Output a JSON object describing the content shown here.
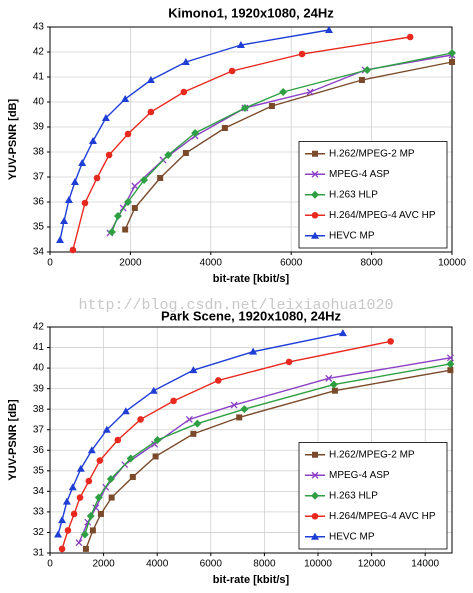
{
  "watermark": "http://blog.csdn.net/leixiaohua1020",
  "chart_data": [
    {
      "type": "line",
      "title": "Kimono1, 1920x1080, 24Hz",
      "x_label": "bit-rate [kbit/s]",
      "y_label": "YUV-PSNR [dB]",
      "xlim": [
        0,
        10000
      ],
      "xticks": [
        0,
        2000,
        4000,
        6000,
        8000,
        10000
      ],
      "ylim": [
        34,
        43
      ],
      "yticks": [
        34,
        35,
        36,
        37,
        38,
        39,
        40,
        41,
        42,
        43
      ],
      "grid": true,
      "legend": "lower right",
      "series": [
        {
          "name": "H.262/MPEG-2 MP",
          "color": "#7b4a2a",
          "marker": "square",
          "x": [
            1870,
            2110,
            2740,
            3380,
            4350,
            5520,
            7760,
            10000
          ],
          "values": [
            34.9,
            35.76,
            36.96,
            37.96,
            38.96,
            39.84,
            40.88,
            41.6
          ]
        },
        {
          "name": "MPEG-4 ASP",
          "color": "#8b3fc4",
          "marker": "x",
          "x": [
            1490,
            1820,
            2110,
            2810,
            3610,
            4850,
            6470,
            7840,
            10000
          ],
          "values": [
            34.76,
            35.76,
            36.64,
            37.68,
            38.64,
            39.76,
            40.4,
            41.28,
            41.88
          ]
        },
        {
          "name": "H.263 HLP",
          "color": "#2ea043",
          "marker": "diamond",
          "x": [
            1540,
            1690,
            1940,
            2340,
            2940,
            3610,
            4850,
            5800,
            7890,
            10000
          ],
          "values": [
            34.8,
            35.44,
            36.0,
            36.88,
            37.88,
            38.76,
            39.76,
            40.4,
            41.28,
            41.96
          ]
        },
        {
          "name": "H.264/MPEG-4 AVC HP",
          "color": "#e8291f",
          "marker": "circle",
          "x": [
            570,
            870,
            1170,
            1470,
            1940,
            2510,
            3330,
            4530,
            6270,
            8960
          ],
          "values": [
            34.08,
            35.96,
            36.96,
            37.88,
            38.72,
            39.6,
            40.4,
            41.24,
            41.92,
            42.6
          ]
        },
        {
          "name": "HEVC MP",
          "color": "#1f3ed6",
          "marker": "triangle",
          "x": [
            250,
            350,
            470,
            620,
            800,
            1070,
            1390,
            1870,
            2510,
            3380,
            4750,
            6940
          ],
          "values": [
            34.48,
            35.24,
            36.08,
            36.8,
            37.56,
            38.44,
            39.36,
            40.12,
            40.88,
            41.6,
            42.28,
            42.88
          ]
        }
      ]
    },
    {
      "type": "line",
      "title": "Park Scene, 1920x1080, 24Hz",
      "x_label": "bit-rate [kbit/s]",
      "y_label": "YUV-PSNR [dB]",
      "xlim": [
        0,
        15000
      ],
      "xticks": [
        0,
        2000,
        4000,
        6000,
        8000,
        10000,
        12000,
        14000
      ],
      "ylim": [
        31,
        42
      ],
      "yticks": [
        31,
        32,
        33,
        34,
        35,
        36,
        37,
        38,
        39,
        40,
        41,
        42
      ],
      "grid": true,
      "legend": "lower right",
      "series": [
        {
          "name": "H.262/MPEG-2 MP",
          "color": "#7b4a2a",
          "marker": "square",
          "x": [
            1340,
            1600,
            1900,
            2300,
            3090,
            3940,
            5350,
            7060,
            10630,
            14940
          ],
          "values": [
            31.2,
            32.1,
            32.9,
            33.7,
            34.7,
            35.7,
            36.8,
            37.6,
            38.9,
            39.9
          ]
        },
        {
          "name": "MPEG-4 ASP",
          "color": "#8b3fc4",
          "marker": "x",
          "x": [
            1080,
            1410,
            1710,
            2080,
            2790,
            3900,
            5200,
            6870,
            10400,
            14940
          ],
          "values": [
            31.5,
            32.5,
            33.2,
            34.2,
            35.3,
            36.3,
            37.5,
            38.2,
            39.5,
            40.5
          ]
        },
        {
          "name": "H.263 HLP",
          "color": "#2ea043",
          "marker": "diamond",
          "x": [
            1300,
            1520,
            1820,
            2270,
            3010,
            4010,
            5500,
            7250,
            10590,
            14940
          ],
          "values": [
            31.9,
            32.8,
            33.7,
            34.6,
            35.6,
            36.5,
            37.3,
            38.0,
            39.2,
            40.2
          ]
        },
        {
          "name": "H.264/MPEG-4 AVC HP",
          "color": "#e8291f",
          "marker": "circle",
          "x": [
            450,
            670,
            900,
            1120,
            1450,
            1860,
            2530,
            3380,
            4610,
            6280,
            8920,
            12710
          ],
          "values": [
            31.2,
            32.1,
            32.9,
            33.7,
            34.5,
            35.5,
            36.5,
            37.5,
            38.4,
            39.4,
            40.3,
            41.3
          ]
        },
        {
          "name": "HEVC MP",
          "color": "#1f3ed6",
          "marker": "triangle",
          "x": [
            300,
            450,
            630,
            850,
            1150,
            1560,
            2120,
            2830,
            3870,
            5350,
            7580,
            10930
          ],
          "values": [
            31.9,
            32.6,
            33.5,
            34.2,
            35.1,
            36.0,
            37.0,
            37.9,
            38.9,
            39.9,
            40.8,
            41.7
          ]
        }
      ]
    }
  ]
}
